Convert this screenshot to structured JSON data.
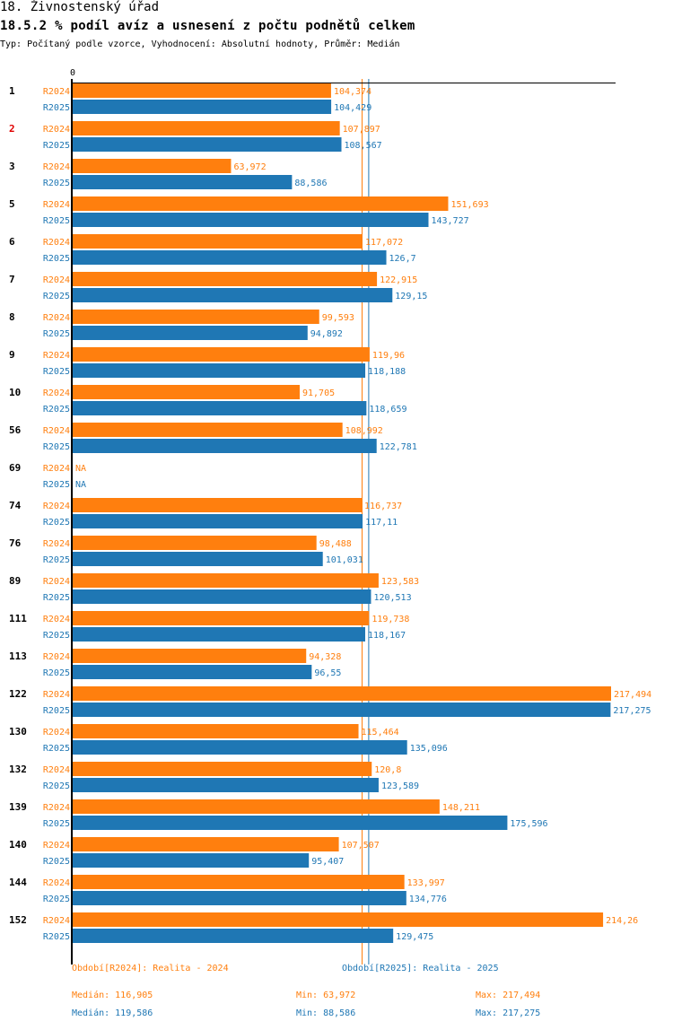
{
  "header": {
    "title": "18. Živnostenský úřad",
    "subtitle": "18.5.2 % podíl avíz a usnesení z počtu podnětů celkem",
    "info": "Typ: Počítaný podle vzorce, Vyhodnocení: Absolutní hodnoty, Průměr: Medián"
  },
  "colors": {
    "R2024": "#ff7f0e",
    "R2025": "#1f77b4",
    "highlight_category": "#e00000",
    "axis": "#000000"
  },
  "chart_data": {
    "type": "bar",
    "orientation": "horizontal",
    "title": "18.5.2 % podíl avíz a usnesení z počtu podnětů celkem",
    "xlabel": "",
    "ylabel": "",
    "x_tick_labels": [
      "0"
    ],
    "xlim": [
      0,
      217.494
    ],
    "grid": false,
    "highlighted_category": "2",
    "categories": [
      "1",
      "2",
      "3",
      "5",
      "6",
      "7",
      "8",
      "9",
      "10",
      "56",
      "69",
      "74",
      "76",
      "89",
      "111",
      "113",
      "122",
      "130",
      "132",
      "139",
      "140",
      "144",
      "152"
    ],
    "series": [
      {
        "name": "R2024",
        "values": [
          104.374,
          107.897,
          63.972,
          151.693,
          117.072,
          122.915,
          99.593,
          119.96,
          91.705,
          108.992,
          null,
          116.737,
          98.488,
          123.583,
          119.738,
          94.328,
          217.494,
          115.464,
          120.8,
          148.211,
          107.507,
          133.997,
          214.26
        ],
        "labels": [
          "104,374",
          "107,897",
          "63,972",
          "151,693",
          "117,072",
          "122,915",
          "99,593",
          "119,96",
          "91,705",
          "108,992",
          "NA",
          "116,737",
          "98,488",
          "123,583",
          "119,738",
          "94,328",
          "217,494",
          "115,464",
          "120,8",
          "148,211",
          "107,507",
          "133,997",
          "214,26"
        ],
        "median": 116.905
      },
      {
        "name": "R2025",
        "values": [
          104.429,
          108.567,
          88.586,
          143.727,
          126.7,
          129.15,
          94.892,
          118.188,
          118.659,
          122.781,
          null,
          117.11,
          101.031,
          120.513,
          118.167,
          96.55,
          217.275,
          135.096,
          123.589,
          175.596,
          95.407,
          134.776,
          129.475
        ],
        "labels": [
          "104,429",
          "108,567",
          "88,586",
          "143,727",
          "126,7",
          "129,15",
          "94,892",
          "118,188",
          "118,659",
          "122,781",
          "NA",
          "117,11",
          "101,031",
          "120,513",
          "118,167",
          "96,55",
          "217,275",
          "135,096",
          "123,589",
          "175,596",
          "95,407",
          "134,776",
          "129,475"
        ],
        "median": 119.586
      }
    ],
    "legend": {
      "placement": "bottom",
      "entries": [
        {
          "series": "R2024",
          "text": "Období[R2024]: Realita - 2024"
        },
        {
          "series": "R2025",
          "text": "Období[R2025]: Realita - 2025"
        }
      ]
    },
    "summary": [
      {
        "series": "R2024",
        "median": "Medián: 116,905",
        "min": "Min: 63,972",
        "max": "Max: 217,494"
      },
      {
        "series": "R2025",
        "median": "Medián: 119,586",
        "min": "Min: 88,586",
        "max": "Max: 217,275"
      }
    ]
  }
}
